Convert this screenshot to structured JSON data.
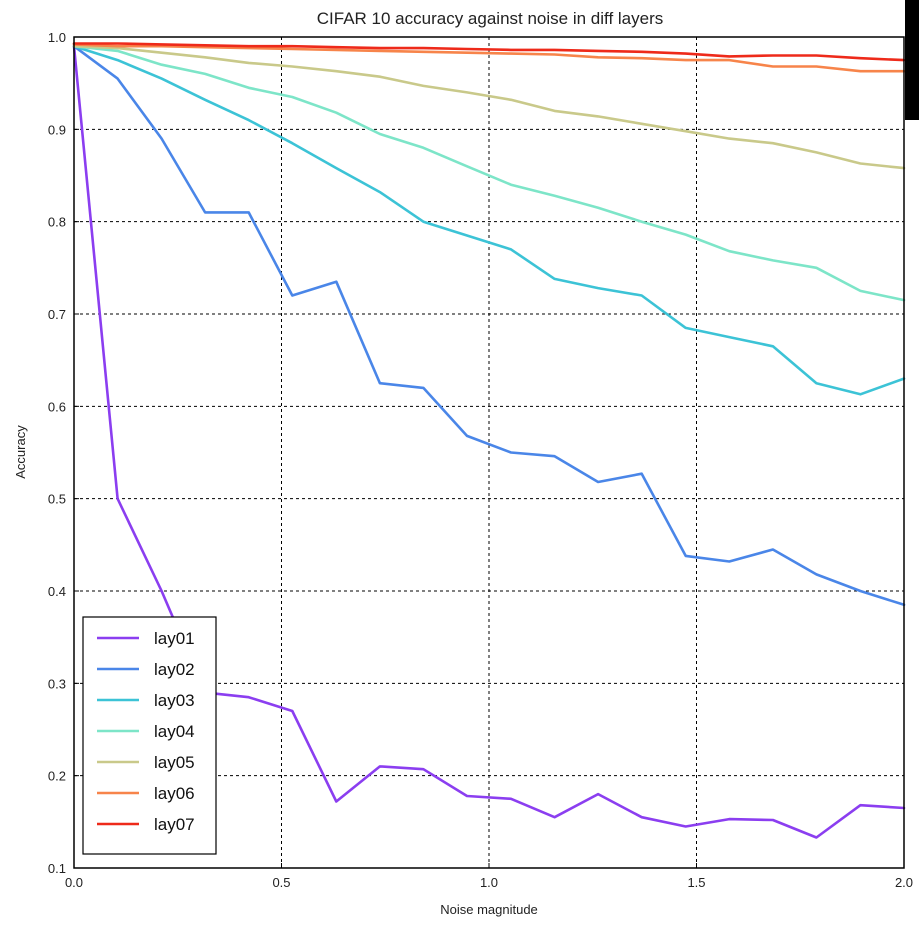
{
  "chart_data": {
    "type": "line",
    "title": "CIFAR 10 accuracy against noise in diff layers",
    "xlabel": "Noise magnitude",
    "ylabel": "Accuracy",
    "xlim": [
      0.0,
      2.0
    ],
    "ylim": [
      0.1,
      1.0
    ],
    "xticks": [
      "0.0",
      "0.5",
      "1.0",
      "1.5",
      "2.0"
    ],
    "yticks": [
      "0.1",
      "0.2",
      "0.3",
      "0.4",
      "0.5",
      "0.6",
      "0.7",
      "0.8",
      "0.9",
      "1.0"
    ],
    "grid": true,
    "legend_position": "lower-left",
    "x": [
      0.0,
      0.105,
      0.211,
      0.316,
      0.421,
      0.526,
      0.632,
      0.737,
      0.842,
      0.947,
      1.053,
      1.158,
      1.263,
      1.368,
      1.474,
      1.579,
      1.684,
      1.789,
      1.895,
      2.0
    ],
    "series": [
      {
        "name": "lay01",
        "color": "#8b3ef0",
        "values": [
          0.99,
          0.5,
          0.4,
          0.29,
          0.285,
          0.27,
          0.172,
          0.21,
          0.207,
          0.178,
          0.175,
          0.155,
          0.18,
          0.155,
          0.145,
          0.153,
          0.152,
          0.133,
          0.168,
          0.165
        ]
      },
      {
        "name": "lay02",
        "color": "#4a86e8",
        "values": [
          0.99,
          0.955,
          0.89,
          0.81,
          0.81,
          0.72,
          0.735,
          0.625,
          0.62,
          0.568,
          0.55,
          0.546,
          0.518,
          0.527,
          0.438,
          0.432,
          0.445,
          0.418,
          0.4,
          0.385
        ]
      },
      {
        "name": "lay03",
        "color": "#3cc3d6",
        "values": [
          0.99,
          0.975,
          0.955,
          0.932,
          0.91,
          0.885,
          0.858,
          0.832,
          0.8,
          0.785,
          0.77,
          0.738,
          0.728,
          0.72,
          0.685,
          0.675,
          0.665,
          0.625,
          0.613,
          0.63
        ]
      },
      {
        "name": "lay04",
        "color": "#7de5c8",
        "values": [
          0.99,
          0.985,
          0.97,
          0.96,
          0.945,
          0.935,
          0.918,
          0.895,
          0.88,
          0.86,
          0.84,
          0.828,
          0.815,
          0.8,
          0.786,
          0.768,
          0.758,
          0.75,
          0.725,
          0.715
        ]
      },
      {
        "name": "lay05",
        "color": "#c9c98a",
        "values": [
          0.99,
          0.988,
          0.983,
          0.978,
          0.972,
          0.968,
          0.963,
          0.957,
          0.947,
          0.94,
          0.932,
          0.92,
          0.914,
          0.906,
          0.898,
          0.89,
          0.885,
          0.875,
          0.863,
          0.858
        ]
      },
      {
        "name": "lay06",
        "color": "#f7844a",
        "values": [
          0.992,
          0.99,
          0.99,
          0.989,
          0.988,
          0.987,
          0.986,
          0.985,
          0.984,
          0.983,
          0.982,
          0.981,
          0.978,
          0.977,
          0.975,
          0.975,
          0.968,
          0.968,
          0.963,
          0.963
        ]
      },
      {
        "name": "lay07",
        "color": "#ee2a1a",
        "values": [
          0.993,
          0.993,
          0.992,
          0.991,
          0.99,
          0.99,
          0.989,
          0.988,
          0.988,
          0.987,
          0.986,
          0.986,
          0.985,
          0.984,
          0.982,
          0.979,
          0.98,
          0.98,
          0.977,
          0.975
        ]
      }
    ]
  }
}
